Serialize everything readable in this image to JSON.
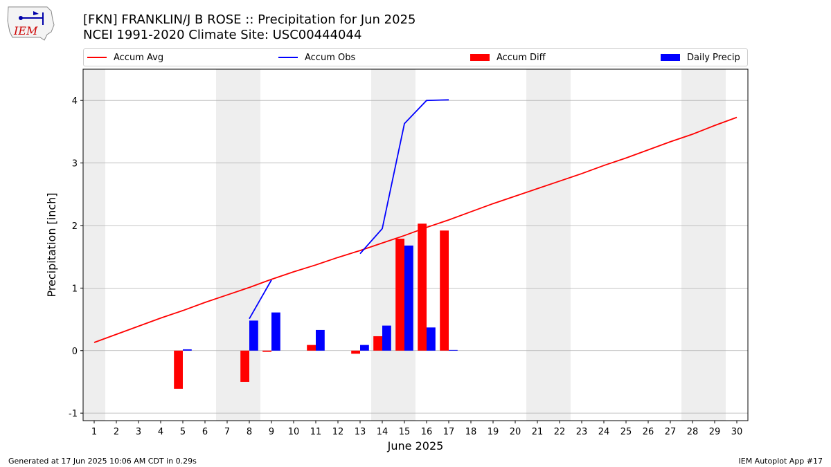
{
  "header": {
    "title_line1": "[FKN] FRANKLIN/J B ROSE :: Precipitation for Jun 2025",
    "title_line2": "NCEI 1991-2020 Climate Site: USC00444044",
    "logo_text": "IEM"
  },
  "footer": {
    "left": "Generated at 17 Jun 2025 10:06 AM CDT in 0.29s",
    "right": "IEM Autoplot App #17"
  },
  "colors": {
    "avg": "#ff0000",
    "obs": "#0000ff",
    "diff": "#ff0000",
    "daily": "#0000ff",
    "weekend": "#eeeeee",
    "grid": "#b0b0b0"
  },
  "chart_data": {
    "type": "bar",
    "xlabel": "June 2025",
    "ylabel": "Precipitation [inch]",
    "xlim": [
      0.5,
      30.5
    ],
    "ylim": [
      -1.12,
      4.5
    ],
    "xticks": [
      1,
      2,
      3,
      4,
      5,
      6,
      7,
      8,
      9,
      10,
      11,
      12,
      13,
      14,
      15,
      16,
      17,
      18,
      19,
      20,
      21,
      22,
      23,
      24,
      25,
      26,
      27,
      28,
      29,
      30
    ],
    "yticks": [
      -1,
      0,
      1,
      2,
      3,
      4
    ],
    "grid": true,
    "legend_position": "top",
    "weekend_shading": [
      [
        0.5,
        1.5
      ],
      [
        6.5,
        8.5
      ],
      [
        13.5,
        15.5
      ],
      [
        20.5,
        22.5
      ],
      [
        27.5,
        29.5
      ]
    ],
    "series": [
      {
        "name": "Accum Avg",
        "type": "line",
        "x": [
          1,
          2,
          3,
          4,
          5,
          6,
          7,
          8,
          9,
          10,
          11,
          12,
          13,
          14,
          15,
          16,
          17,
          18,
          19,
          20,
          21,
          22,
          23,
          24,
          25,
          26,
          27,
          28,
          29,
          30
        ],
        "values": [
          0.13,
          0.26,
          0.39,
          0.52,
          0.64,
          0.77,
          0.89,
          1.01,
          1.14,
          1.26,
          1.37,
          1.49,
          1.6,
          1.72,
          1.84,
          1.97,
          2.09,
          2.22,
          2.35,
          2.47,
          2.59,
          2.71,
          2.83,
          2.96,
          3.08,
          3.21,
          3.34,
          3.46,
          3.6,
          3.73
        ]
      },
      {
        "name": "Accum Obs",
        "type": "line",
        "segments": [
          {
            "x": [
              8,
              9
            ],
            "values": [
              0.51,
              1.13
            ]
          },
          {
            "x": [
              13,
              14,
              15,
              16,
              17
            ],
            "values": [
              1.55,
              1.95,
              3.63,
              4.0,
              4.01
            ]
          }
        ]
      },
      {
        "name": "Accum Diff",
        "type": "bar",
        "x": [
          5,
          8,
          9,
          11,
          13,
          14,
          15,
          16,
          17
        ],
        "values": [
          -0.61,
          -0.5,
          -0.02,
          0.09,
          -0.05,
          0.23,
          1.79,
          2.03,
          1.92
        ]
      },
      {
        "name": "Daily Precip",
        "type": "bar",
        "x": [
          5,
          8,
          9,
          11,
          13,
          14,
          15,
          16,
          17
        ],
        "values": [
          0.02,
          0.48,
          0.61,
          0.33,
          0.09,
          0.4,
          1.68,
          0.37,
          0.01
        ]
      }
    ]
  }
}
